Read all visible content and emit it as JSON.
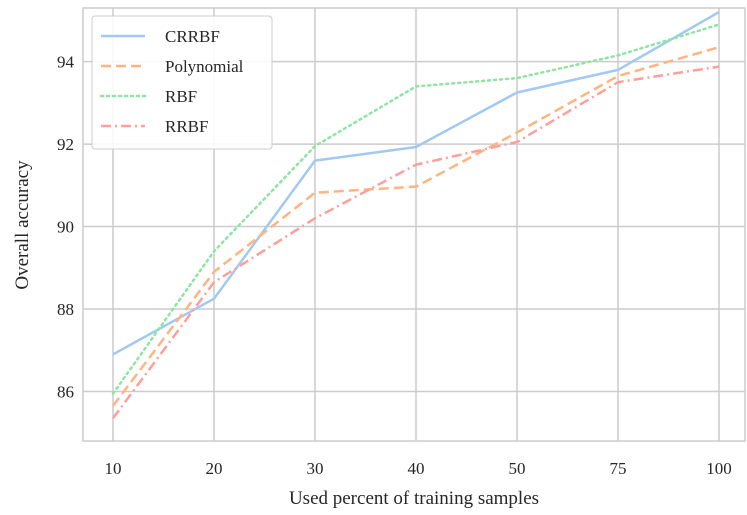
{
  "chart_data": {
    "type": "line",
    "xlabel": "Used percent of training samples",
    "ylabel": "Overall accuracy",
    "categories": [
      "10",
      "20",
      "30",
      "40",
      "50",
      "75",
      "100"
    ],
    "yticks": [
      86,
      88,
      90,
      92,
      94
    ],
    "ylim": [
      84.8,
      95.3
    ],
    "grid": true,
    "legend_position": "top-left",
    "series": [
      {
        "name": "CRRBF",
        "values": [
          86.9,
          88.25,
          91.6,
          91.93,
          93.25,
          93.8,
          95.2
        ],
        "color": "#a1c9f4",
        "dash": "solid"
      },
      {
        "name": "Polynomial",
        "values": [
          85.65,
          88.9,
          90.82,
          90.97,
          92.28,
          93.65,
          94.35
        ],
        "color": "#ffb482",
        "dash": "dashed"
      },
      {
        "name": "RBF",
        "values": [
          85.95,
          89.4,
          91.95,
          93.4,
          93.6,
          94.15,
          94.9
        ],
        "color": "#8de5a1",
        "dash": "dotted"
      },
      {
        "name": "RRBF",
        "values": [
          85.35,
          88.65,
          90.2,
          91.5,
          92.05,
          93.5,
          93.88
        ],
        "color": "#ff9f9b",
        "dash": "dashdot"
      }
    ]
  }
}
